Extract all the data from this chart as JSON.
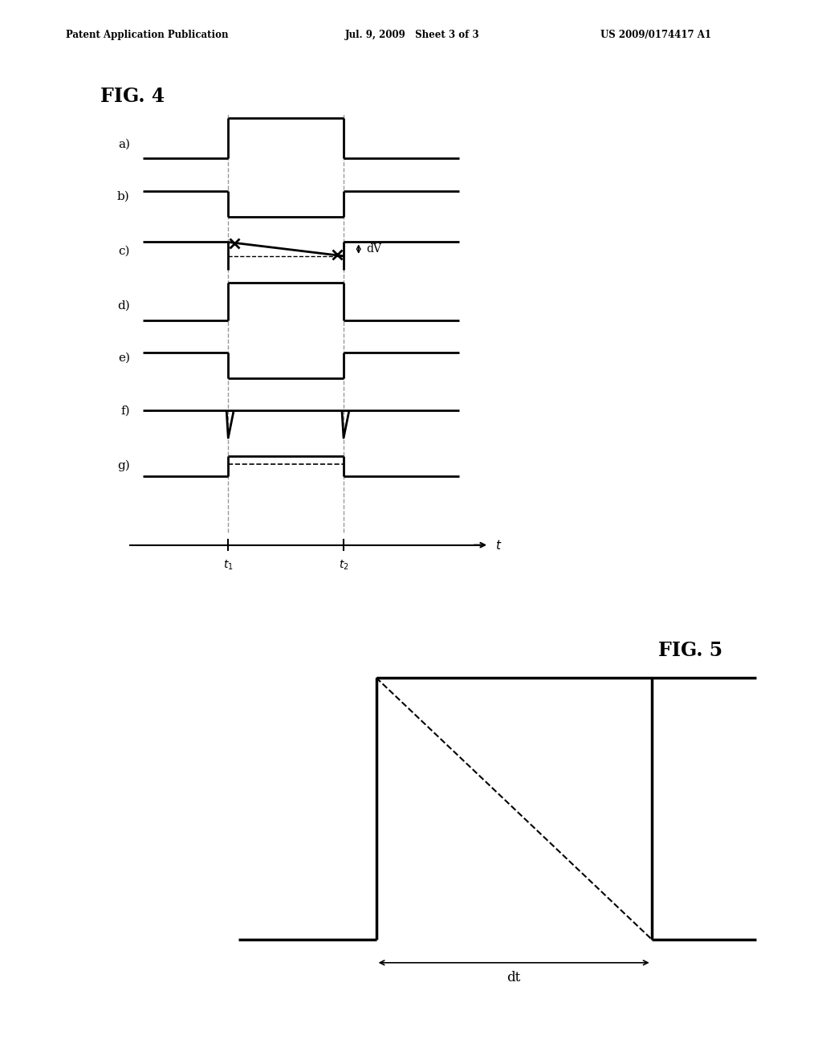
{
  "header_left": "Patent Application Publication",
  "header_mid": "Jul. 9, 2009   Sheet 3 of 3",
  "header_right": "US 2009/0174417 A1",
  "fig4_title": "FIG. 4",
  "fig5_title": "FIG. 5",
  "bg_color": "#ffffff",
  "line_color": "#000000",
  "dashed_color": "#888888",
  "t1_label": "t₁",
  "t2_label": "t₂",
  "t_label": "t",
  "dt_label": "dt",
  "dV_label": "dV",
  "waveform_labels": [
    "a)",
    "b)",
    "c)",
    "d)",
    "e)",
    "f)",
    "g)"
  ]
}
